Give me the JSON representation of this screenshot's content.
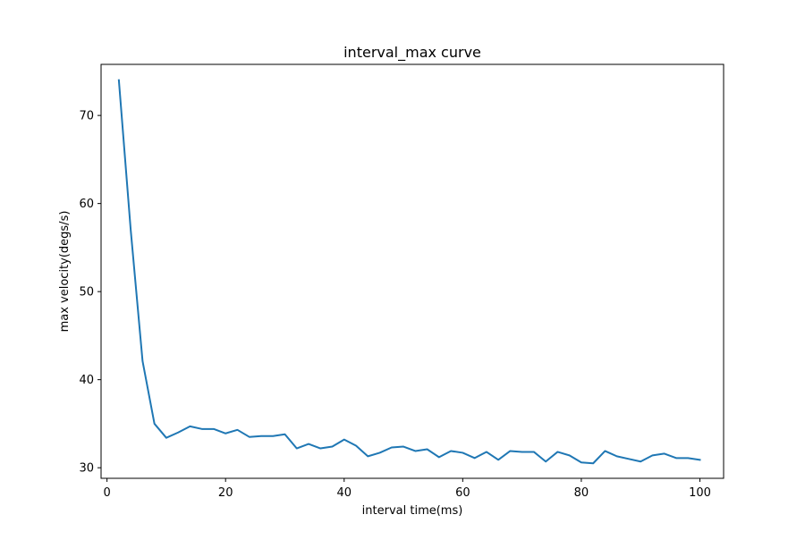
{
  "chart_data": {
    "type": "line",
    "title": "interval_max curve",
    "xlabel": "interval time(ms)",
    "ylabel": "max velocity(degs/s)",
    "xlim": [
      -1,
      104
    ],
    "ylim": [
      28.8,
      75.8
    ],
    "xticks": [
      0,
      20,
      40,
      60,
      80,
      100
    ],
    "yticks": [
      30,
      40,
      50,
      60,
      70
    ],
    "grid": false,
    "line_color": "#1f77b4",
    "series": [
      {
        "x": [
          2,
          4,
          6,
          8,
          10,
          12,
          14,
          16,
          18,
          20,
          22,
          24,
          26,
          28,
          30,
          32,
          34,
          36,
          38,
          40,
          42,
          44,
          46,
          48,
          50,
          52,
          54,
          56,
          58,
          60,
          62,
          64,
          66,
          68,
          70,
          72,
          74,
          76,
          78,
          80,
          82,
          84,
          86,
          88,
          90,
          92,
          94,
          96,
          98,
          100
        ],
        "values": [
          74.0,
          57.0,
          42.1,
          35.0,
          33.4,
          34.0,
          34.7,
          34.4,
          34.4,
          33.9,
          34.3,
          33.5,
          33.6,
          33.6,
          33.8,
          32.2,
          32.7,
          32.2,
          32.4,
          33.2,
          32.5,
          31.3,
          31.7,
          32.3,
          32.4,
          31.9,
          32.1,
          31.2,
          31.9,
          31.7,
          31.1,
          31.8,
          30.9,
          31.9,
          31.8,
          31.8,
          30.7,
          31.8,
          31.4,
          30.6,
          30.5,
          31.9,
          31.3,
          31.0,
          30.7,
          31.4,
          31.6,
          31.1,
          31.1,
          30.9
        ]
      }
    ]
  }
}
